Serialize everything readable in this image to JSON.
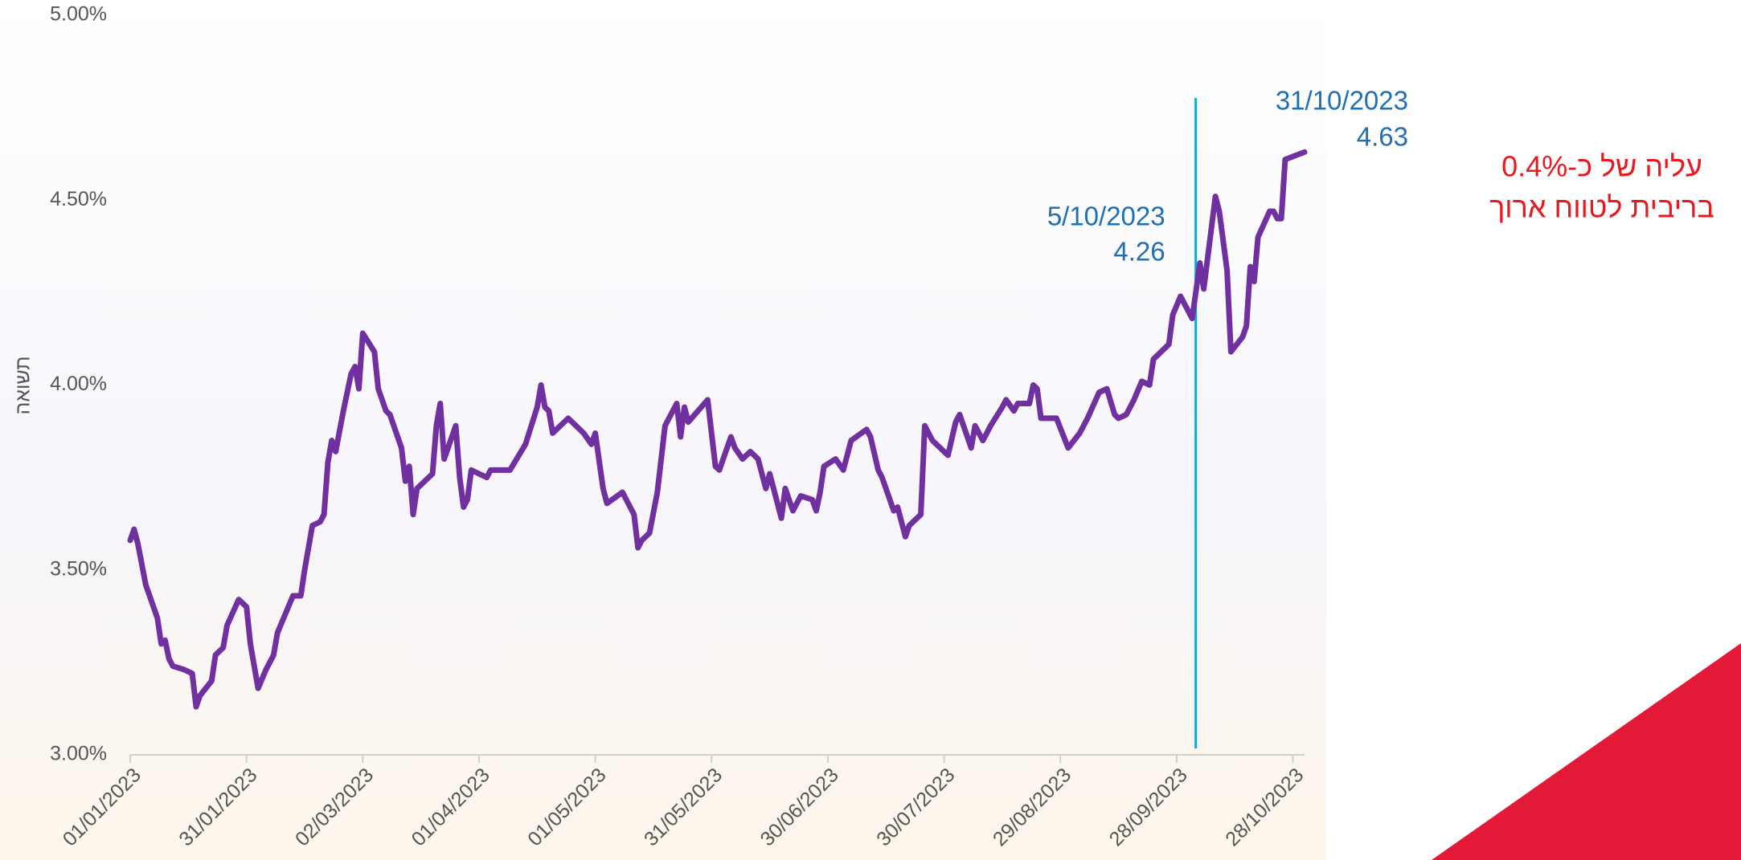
{
  "chart_data": {
    "type": "line",
    "y_label": "תשואה",
    "x": [
      "01/01/2023",
      "02/01/2023",
      "03/01/2023",
      "05/01/2023",
      "08/01/2023",
      "09/01/2023",
      "10/01/2023",
      "11/01/2023",
      "12/01/2023",
      "15/01/2023",
      "17/01/2023",
      "18/01/2023",
      "19/01/2023",
      "22/01/2023",
      "23/01/2023",
      "25/01/2023",
      "26/01/2023",
      "29/01/2023",
      "31/01/2023",
      "01/02/2023",
      "03/02/2023",
      "05/02/2023",
      "07/02/2023",
      "08/02/2023",
      "12/02/2023",
      "14/02/2023",
      "15/02/2023",
      "17/02/2023",
      "19/02/2023",
      "20/02/2023",
      "21/02/2023",
      "22/02/2023",
      "23/02/2023",
      "25/02/2023",
      "27/02/2023",
      "28/02/2023",
      "01/03/2023",
      "02/03/2023",
      "05/03/2023",
      "06/03/2023",
      "08/03/2023",
      "09/03/2023",
      "12/03/2023",
      "13/03/2023",
      "14/03/2023",
      "15/03/2023",
      "16/03/2023",
      "20/03/2023",
      "21/03/2023",
      "22/03/2023",
      "23/03/2023",
      "26/03/2023",
      "27/03/2023",
      "28/03/2023",
      "29/03/2023",
      "30/03/2023",
      "03/04/2023",
      "04/04/2023",
      "09/04/2023",
      "13/04/2023",
      "16/04/2023",
      "17/04/2023",
      "18/04/2023",
      "19/04/2023",
      "20/04/2023",
      "24/04/2023",
      "28/04/2023",
      "30/04/2023",
      "01/05/2023",
      "03/05/2023",
      "04/05/2023",
      "08/05/2023",
      "09/05/2023",
      "11/05/2023",
      "12/05/2023",
      "13/05/2023",
      "15/05/2023",
      "17/05/2023",
      "19/05/2023",
      "22/05/2023",
      "23/05/2023",
      "24/05/2023",
      "25/05/2023",
      "30/05/2023",
      "01/06/2023",
      "02/06/2023",
      "05/06/2023",
      "06/06/2023",
      "08/06/2023",
      "10/06/2023",
      "12/06/2023",
      "14/06/2023",
      "15/06/2023",
      "18/06/2023",
      "19/06/2023",
      "21/06/2023",
      "23/06/2023",
      "26/06/2023",
      "27/06/2023",
      "28/06/2023",
      "29/06/2023",
      "02/07/2023",
      "04/07/2023",
      "05/07/2023",
      "06/07/2023",
      "10/07/2023",
      "11/07/2023",
      "13/07/2023",
      "14/07/2023",
      "17/07/2023",
      "18/07/2023",
      "20/07/2023",
      "21/07/2023",
      "24/07/2023",
      "25/07/2023",
      "27/07/2023",
      "31/07/2023",
      "02/08/2023",
      "03/08/2023",
      "06/08/2023",
      "07/08/2023",
      "09/08/2023",
      "11/08/2023",
      "14/08/2023",
      "15/08/2023",
      "17/08/2023",
      "18/08/2023",
      "21/08/2023",
      "22/08/2023",
      "23/08/2023",
      "24/08/2023",
      "28/08/2023",
      "31/08/2023",
      "03/09/2023",
      "05/09/2023",
      "08/09/2023",
      "10/09/2023",
      "12/09/2023",
      "13/09/2023",
      "15/09/2023",
      "17/09/2023",
      "19/09/2023",
      "21/09/2023",
      "22/09/2023",
      "26/09/2023",
      "27/09/2023",
      "29/09/2023",
      "02/10/2023",
      "04/10/2023",
      "05/10/2023",
      "08/10/2023",
      "09/10/2023",
      "11/10/2023",
      "12/10/2023",
      "15/10/2023",
      "16/10/2023",
      "17/10/2023",
      "18/10/2023",
      "19/10/2023",
      "22/10/2023",
      "23/10/2023",
      "24/10/2023",
      "25/10/2023",
      "26/10/2023",
      "31/10/2023"
    ],
    "series": [
      {
        "color": "#7030a0",
        "values": [
          3.58,
          3.61,
          3.57,
          3.46,
          3.37,
          3.3,
          3.31,
          3.26,
          3.24,
          3.23,
          3.22,
          3.13,
          3.16,
          3.2,
          3.27,
          3.29,
          3.35,
          3.42,
          3.4,
          3.3,
          3.18,
          3.23,
          3.27,
          3.33,
          3.43,
          3.43,
          3.5,
          3.62,
          3.63,
          3.65,
          3.79,
          3.85,
          3.82,
          3.93,
          4.03,
          4.05,
          3.99,
          4.14,
          4.09,
          3.99,
          3.93,
          3.92,
          3.83,
          3.74,
          3.78,
          3.65,
          3.72,
          3.76,
          3.89,
          3.95,
          3.8,
          3.89,
          3.75,
          3.67,
          3.69,
          3.77,
          3.75,
          3.77,
          3.77,
          3.84,
          3.94,
          4.0,
          3.94,
          3.93,
          3.87,
          3.91,
          3.87,
          3.84,
          3.87,
          3.72,
          3.68,
          3.71,
          3.69,
          3.65,
          3.56,
          3.58,
          3.6,
          3.71,
          3.89,
          3.95,
          3.86,
          3.94,
          3.9,
          3.96,
          3.78,
          3.77,
          3.86,
          3.83,
          3.8,
          3.82,
          3.8,
          3.72,
          3.76,
          3.64,
          3.72,
          3.66,
          3.7,
          3.69,
          3.66,
          3.71,
          3.78,
          3.8,
          3.77,
          3.81,
          3.85,
          3.88,
          3.86,
          3.77,
          3.75,
          3.66,
          3.67,
          3.59,
          3.62,
          3.65,
          3.89,
          3.85,
          3.81,
          3.9,
          3.92,
          3.83,
          3.89,
          3.85,
          3.89,
          3.94,
          3.96,
          3.93,
          3.95,
          3.95,
          4.0,
          3.99,
          3.91,
          3.91,
          3.83,
          3.87,
          3.91,
          3.98,
          3.99,
          3.92,
          3.91,
          3.92,
          3.96,
          4.01,
          4.0,
          4.07,
          4.11,
          4.19,
          4.24,
          4.18,
          4.33,
          4.26,
          4.51,
          4.47,
          4.31,
          4.09,
          4.13,
          4.16,
          4.32,
          4.28,
          4.4,
          4.47,
          4.47,
          4.45,
          4.45,
          4.61,
          4.63
        ]
      }
    ],
    "xlim": [
      "01/01/2023",
      "31/10/2023"
    ],
    "xticks": [
      "01/01/2023",
      "31/01/2023",
      "02/03/2023",
      "01/04/2023",
      "01/05/2023",
      "31/05/2023",
      "30/06/2023",
      "30/07/2023",
      "29/08/2023",
      "28/09/2023",
      "28/10/2023"
    ],
    "ylim": [
      3,
      5
    ],
    "yticks": [
      {
        "value": 3,
        "label": "3.00%"
      },
      {
        "value": 3.5,
        "label": "3.50%"
      },
      {
        "value": 4,
        "label": "4.00%"
      },
      {
        "value": 4.5,
        "label": "4.50%"
      },
      {
        "value": 5,
        "label": "5.00%"
      }
    ],
    "annotations": [
      {
        "date": "5/10/2023",
        "value": 4.26
      },
      {
        "date": "31/10/2023",
        "value": 4.63
      }
    ],
    "note": [
      "עליה של כ-0.4%",
      "בריבית לטווח ארוך"
    ]
  }
}
